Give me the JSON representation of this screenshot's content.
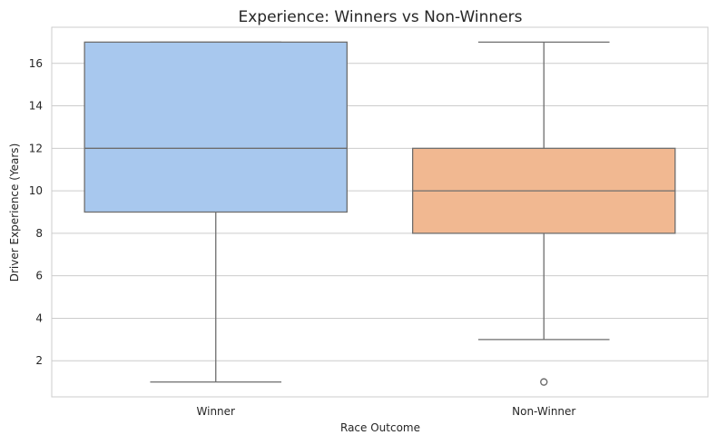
{
  "chart_data": {
    "type": "box",
    "title": "Experience: Winners vs Non-Winners",
    "xlabel": "Race Outcome",
    "ylabel": "Driver Experience (Years)",
    "ylim": [
      0.3,
      17.7
    ],
    "yticks": [
      2,
      4,
      6,
      8,
      10,
      12,
      14,
      16
    ],
    "grid": true,
    "categories": [
      "Winner",
      "Non-Winner"
    ],
    "colors": [
      "#a8c8ee",
      "#f1b891"
    ],
    "boxes": [
      {
        "category": "Winner",
        "whisker_low": 1,
        "q1": 9,
        "median": 12,
        "q3": 17,
        "whisker_high": 17,
        "outliers": []
      },
      {
        "category": "Non-Winner",
        "whisker_low": 3,
        "q1": 8,
        "median": 10,
        "q3": 12,
        "whisker_high": 17,
        "outliers": [
          1
        ]
      }
    ]
  }
}
